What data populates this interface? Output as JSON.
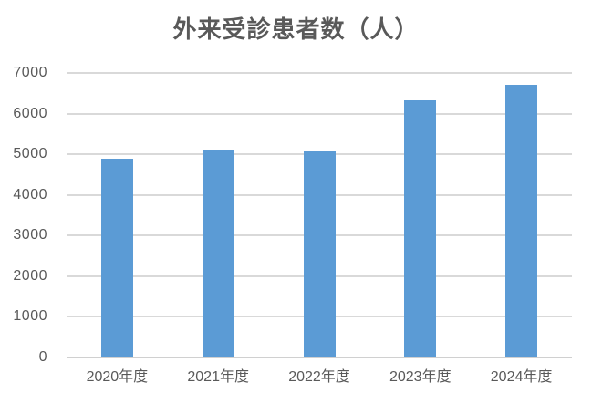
{
  "chart_data": {
    "type": "bar",
    "title": "外来受診患者数（人）",
    "categories": [
      "2020年度",
      "2021年度",
      "2022年度",
      "2023年度",
      "2024年度"
    ],
    "values": [
      4890,
      5100,
      5060,
      6330,
      6710
    ],
    "xlabel": "",
    "ylabel": "",
    "ylim": [
      0,
      7000
    ],
    "y_ticks": [
      0,
      1000,
      2000,
      3000,
      4000,
      5000,
      6000,
      7000
    ],
    "grid": true,
    "legend": false,
    "colors": {
      "bar": "#5B9BD5",
      "gridline": "#D9D9D9",
      "axis_line": "#D0D0D0",
      "text": "#595959",
      "background": "#FFFFFF"
    }
  }
}
